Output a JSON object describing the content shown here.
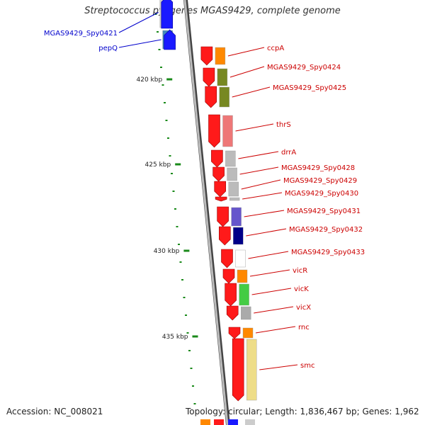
{
  "title": "Streptococcus pyogenes MGAS9429, complete genome",
  "footer": {
    "accession": "Accession: NC_008021",
    "topology": "Topology: circular; Length: 1,836,467 bp; Genes: 1,962"
  },
  "ticks": [
    "420 kbp",
    "425 kbp",
    "430 kbp",
    "435 kbp"
  ],
  "genes": [
    {
      "name": "MGAS9429_Spy0421",
      "strand": "reverse",
      "color": "#0000cc"
    },
    {
      "name": "pepQ",
      "strand": "reverse",
      "color": "#0000cc"
    },
    {
      "name": "ccpA",
      "strand": "forward",
      "color": "#cc0000"
    },
    {
      "name": "MGAS9429_Spy0424",
      "strand": "forward",
      "color": "#cc0000"
    },
    {
      "name": "MGAS9429_Spy0425",
      "strand": "forward",
      "color": "#cc0000"
    },
    {
      "name": "thrS",
      "strand": "forward",
      "color": "#cc0000"
    },
    {
      "name": "drrA",
      "strand": "forward",
      "color": "#cc0000"
    },
    {
      "name": "MGAS9429_Spy0428",
      "strand": "forward",
      "color": "#cc0000"
    },
    {
      "name": "MGAS9429_Spy0429",
      "strand": "forward",
      "color": "#cc0000"
    },
    {
      "name": "MGAS9429_Spy0430",
      "strand": "forward",
      "color": "#cc0000"
    },
    {
      "name": "MGAS9429_Spy0431",
      "strand": "forward",
      "color": "#cc0000"
    },
    {
      "name": "MGAS9429_Spy0432",
      "strand": "forward",
      "color": "#cc0000"
    },
    {
      "name": "MGAS9429_Spy0433",
      "strand": "forward",
      "color": "#cc0000"
    },
    {
      "name": "vicR",
      "strand": "forward",
      "color": "#cc0000"
    },
    {
      "name": "vicK",
      "strand": "forward",
      "color": "#cc0000"
    },
    {
      "name": "vicX",
      "strand": "forward",
      "color": "#cc0000"
    },
    {
      "name": "rnc",
      "strand": "forward",
      "color": "#cc0000"
    },
    {
      "name": "smc",
      "strand": "forward",
      "color": "#cc0000"
    }
  ],
  "colors": {
    "forward_arrow": "#ff1a1a",
    "reverse_arrow": "#1a1aff",
    "backbone": "#888888",
    "tick_mark": "#1a8a1a",
    "leader_reverse": "#0000cc",
    "leader_forward": "#cc0000"
  }
}
